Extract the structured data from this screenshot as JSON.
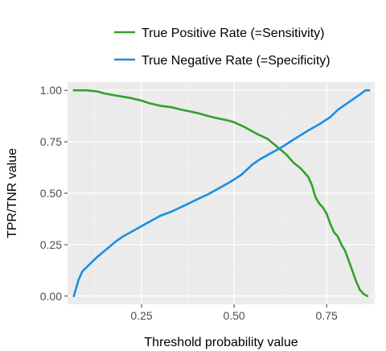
{
  "chart_data": {
    "type": "line",
    "title": "",
    "xlabel": "Threshold probability value",
    "ylabel": "TPR/TNR value",
    "xlim": [
      0.05,
      0.88
    ],
    "ylim": [
      -0.04,
      1.04
    ],
    "x_ticks": [
      0.25,
      0.5,
      0.75
    ],
    "x_tick_labels": [
      "0.25",
      "0.50",
      "0.75"
    ],
    "y_ticks": [
      0.0,
      0.25,
      0.5,
      0.75,
      1.0
    ],
    "y_tick_labels": [
      "0.00",
      "0.25",
      "0.50",
      "0.75",
      "1.00"
    ],
    "grid": true,
    "legend_position": "top",
    "series": [
      {
        "name": "True Positive Rate (=Sensitivity)",
        "color": "#33a02c",
        "points": [
          [
            0.067,
            1.0
          ],
          [
            0.1,
            1.0
          ],
          [
            0.13,
            0.995
          ],
          [
            0.15,
            0.985
          ],
          [
            0.18,
            0.975
          ],
          [
            0.22,
            0.963
          ],
          [
            0.25,
            0.95
          ],
          [
            0.27,
            0.938
          ],
          [
            0.3,
            0.925
          ],
          [
            0.33,
            0.918
          ],
          [
            0.36,
            0.905
          ],
          [
            0.4,
            0.89
          ],
          [
            0.44,
            0.87
          ],
          [
            0.48,
            0.855
          ],
          [
            0.5,
            0.845
          ],
          [
            0.53,
            0.82
          ],
          [
            0.56,
            0.79
          ],
          [
            0.59,
            0.765
          ],
          [
            0.6,
            0.75
          ],
          [
            0.62,
            0.72
          ],
          [
            0.64,
            0.69
          ],
          [
            0.66,
            0.65
          ],
          [
            0.68,
            0.62
          ],
          [
            0.7,
            0.58
          ],
          [
            0.71,
            0.54
          ],
          [
            0.72,
            0.48
          ],
          [
            0.73,
            0.45
          ],
          [
            0.74,
            0.43
          ],
          [
            0.75,
            0.4
          ],
          [
            0.76,
            0.35
          ],
          [
            0.77,
            0.31
          ],
          [
            0.78,
            0.29
          ],
          [
            0.79,
            0.25
          ],
          [
            0.8,
            0.22
          ],
          [
            0.81,
            0.17
          ],
          [
            0.82,
            0.12
          ],
          [
            0.83,
            0.07
          ],
          [
            0.84,
            0.03
          ],
          [
            0.85,
            0.01
          ],
          [
            0.86,
            0.0
          ]
        ]
      },
      {
        "name": "True Negative Rate (=Specificity)",
        "color": "#1a8ee2",
        "points": [
          [
            0.067,
            0.0
          ],
          [
            0.08,
            0.08
          ],
          [
            0.09,
            0.12
          ],
          [
            0.11,
            0.155
          ],
          [
            0.13,
            0.19
          ],
          [
            0.15,
            0.22
          ],
          [
            0.18,
            0.265
          ],
          [
            0.2,
            0.29
          ],
          [
            0.22,
            0.31
          ],
          [
            0.25,
            0.34
          ],
          [
            0.28,
            0.37
          ],
          [
            0.3,
            0.39
          ],
          [
            0.33,
            0.41
          ],
          [
            0.36,
            0.435
          ],
          [
            0.4,
            0.47
          ],
          [
            0.43,
            0.495
          ],
          [
            0.46,
            0.525
          ],
          [
            0.49,
            0.555
          ],
          [
            0.52,
            0.59
          ],
          [
            0.55,
            0.64
          ],
          [
            0.57,
            0.665
          ],
          [
            0.6,
            0.695
          ],
          [
            0.63,
            0.725
          ],
          [
            0.66,
            0.76
          ],
          [
            0.7,
            0.805
          ],
          [
            0.73,
            0.835
          ],
          [
            0.76,
            0.87
          ],
          [
            0.78,
            0.905
          ],
          [
            0.8,
            0.93
          ],
          [
            0.82,
            0.955
          ],
          [
            0.84,
            0.98
          ],
          [
            0.855,
            1.0
          ],
          [
            0.865,
            1.0
          ]
        ]
      }
    ]
  }
}
